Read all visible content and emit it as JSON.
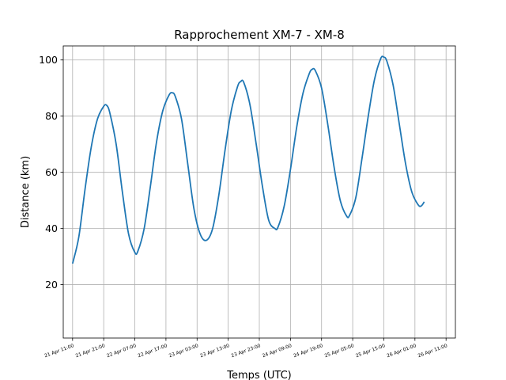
{
  "chart_data": {
    "type": "line",
    "title": "Rapprochement XM-7 - XM-8",
    "xlabel": "Temps (UTC)",
    "ylabel": "Distance (km)",
    "ylim": [
      1,
      105
    ],
    "yticks": [
      20,
      40,
      60,
      80,
      100
    ],
    "xlim_hours": [
      -3,
      123
    ],
    "grid": true,
    "line_color": "#1f77b4",
    "xticks": [
      {
        "h": 0,
        "label": "21 Apr 11:00"
      },
      {
        "h": 10,
        "label": "21 Apr 21:00"
      },
      {
        "h": 20,
        "label": "22 Apr 07:00"
      },
      {
        "h": 30,
        "label": "22 Apr 17:00"
      },
      {
        "h": 40,
        "label": "23 Apr 03:00"
      },
      {
        "h": 50,
        "label": "23 Apr 13:00"
      },
      {
        "h": 60,
        "label": "23 Apr 23:00"
      },
      {
        "h": 70,
        "label": "24 Apr 09:00"
      },
      {
        "h": 80,
        "label": "24 Apr 19:00"
      },
      {
        "h": 90,
        "label": "25 Apr 05:00"
      },
      {
        "h": 100,
        "label": "25 Apr 15:00"
      },
      {
        "h": 110,
        "label": "26 Apr 01:00"
      },
      {
        "h": 120,
        "label": "26 Apr 11:00"
      }
    ],
    "series": [
      {
        "name": "",
        "points": [
          [
            0,
            27.5
          ],
          [
            2,
            37
          ],
          [
            4,
            54
          ],
          [
            6,
            69
          ],
          [
            8,
            79
          ],
          [
            10,
            83.5
          ],
          [
            11,
            83.8
          ],
          [
            12,
            81
          ],
          [
            14,
            70
          ],
          [
            16,
            53
          ],
          [
            18,
            38
          ],
          [
            20,
            31.5
          ],
          [
            21,
            32
          ],
          [
            23,
            40
          ],
          [
            25,
            55
          ],
          [
            27,
            71
          ],
          [
            29,
            82
          ],
          [
            31,
            87.5
          ],
          [
            32,
            88.3
          ],
          [
            33,
            87
          ],
          [
            35,
            79
          ],
          [
            37,
            63
          ],
          [
            39,
            47
          ],
          [
            41,
            38
          ],
          [
            43,
            35.8
          ],
          [
            45,
            40
          ],
          [
            47,
            52
          ],
          [
            49,
            68
          ],
          [
            51,
            82
          ],
          [
            53,
            90.5
          ],
          [
            54,
            92.3
          ],
          [
            55,
            92
          ],
          [
            57,
            84
          ],
          [
            59,
            70
          ],
          [
            61,
            55
          ],
          [
            63,
            43
          ],
          [
            65,
            40
          ],
          [
            66,
            40.5
          ],
          [
            68,
            48
          ],
          [
            70,
            61
          ],
          [
            72,
            76
          ],
          [
            74,
            88
          ],
          [
            76,
            95
          ],
          [
            77,
            96.7
          ],
          [
            78,
            96.2
          ],
          [
            80,
            90
          ],
          [
            82,
            77
          ],
          [
            84,
            62
          ],
          [
            86,
            50
          ],
          [
            88,
            44.5
          ],
          [
            89,
            44.7
          ],
          [
            91,
            51
          ],
          [
            93,
            65
          ],
          [
            95,
            80
          ],
          [
            97,
            93
          ],
          [
            99,
            100.5
          ],
          [
            100,
            101
          ],
          [
            101,
            99.5
          ],
          [
            103,
            91
          ],
          [
            105,
            77
          ],
          [
            107,
            63
          ],
          [
            109,
            53
          ],
          [
            111,
            48.5
          ],
          [
            112,
            48
          ],
          [
            113,
            49.5
          ]
        ]
      }
    ]
  }
}
